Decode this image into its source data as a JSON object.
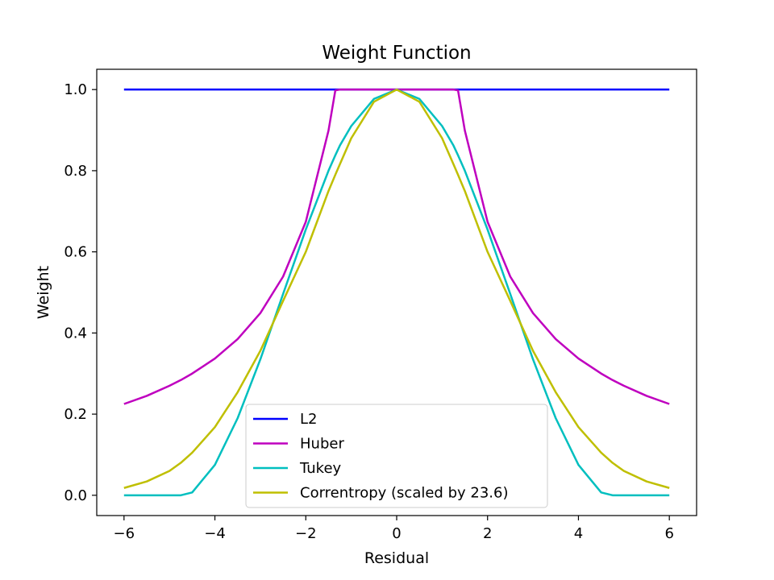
{
  "chart_data": {
    "type": "line",
    "title": "Weight Function",
    "xlabel": "Residual",
    "ylabel": "Weight",
    "xlim": [
      -6.6,
      6.6
    ],
    "ylim": [
      -0.05,
      1.05
    ],
    "xticks": [
      -6,
      -4,
      -2,
      0,
      2,
      4,
      6
    ],
    "xtick_labels": [
      "−6",
      "−4",
      "−2",
      "0",
      "2",
      "4",
      "6"
    ],
    "yticks": [
      0.0,
      0.2,
      0.4,
      0.6,
      0.8,
      1.0
    ],
    "ytick_labels": [
      "0.0",
      "0.2",
      "0.4",
      "0.6",
      "0.8",
      "1.0"
    ],
    "grid": false,
    "legend_position": "lower-center",
    "x": [
      -6.0,
      -5.5,
      -5.0,
      -4.75,
      -4.5,
      -4.0,
      -3.5,
      -3.0,
      -2.5,
      -2.0,
      -1.5,
      -1.35,
      -1.25,
      -1.0,
      -0.5,
      0.0,
      0.5,
      1.0,
      1.25,
      1.35,
      1.5,
      2.0,
      2.5,
      3.0,
      3.5,
      4.0,
      4.5,
      4.75,
      5.0,
      5.5,
      6.0
    ],
    "series": [
      {
        "name": "L2",
        "color": "#0000ff",
        "values": [
          1.0,
          1.0,
          1.0,
          1.0,
          1.0,
          1.0,
          1.0,
          1.0,
          1.0,
          1.0,
          1.0,
          1.0,
          1.0,
          1.0,
          1.0,
          1.0,
          1.0,
          1.0,
          1.0,
          1.0,
          1.0,
          1.0,
          1.0,
          1.0,
          1.0,
          1.0,
          1.0,
          1.0,
          1.0,
          1.0,
          1.0
        ]
      },
      {
        "name": "Huber",
        "color": "#bf00bf",
        "values": [
          0.225,
          0.245,
          0.27,
          0.284,
          0.3,
          0.337,
          0.385,
          0.449,
          0.539,
          0.674,
          0.899,
          0.998,
          1.0,
          1.0,
          1.0,
          1.0,
          1.0,
          1.0,
          1.0,
          0.998,
          0.899,
          0.674,
          0.539,
          0.449,
          0.385,
          0.337,
          0.3,
          0.284,
          0.27,
          0.245,
          0.225
        ]
      },
      {
        "name": "Tukey",
        "color": "#00bfbf",
        "values": [
          0.0,
          0.0,
          0.0,
          0.0,
          0.007,
          0.075,
          0.19,
          0.335,
          0.496,
          0.655,
          0.8,
          0.838,
          0.862,
          0.91,
          0.977,
          1.0,
          0.977,
          0.91,
          0.862,
          0.838,
          0.8,
          0.655,
          0.496,
          0.335,
          0.19,
          0.075,
          0.007,
          0.0,
          0.0,
          0.0,
          0.0
        ]
      },
      {
        "name": "Correntropy (scaled by 23.6)",
        "color": "#bfbf00",
        "values": [
          0.018,
          0.034,
          0.06,
          0.08,
          0.105,
          0.168,
          0.254,
          0.356,
          0.479,
          0.6,
          0.75,
          0.79,
          0.816,
          0.88,
          0.97,
          1.0,
          0.97,
          0.88,
          0.816,
          0.79,
          0.75,
          0.6,
          0.479,
          0.356,
          0.254,
          0.168,
          0.105,
          0.08,
          0.06,
          0.034,
          0.018
        ]
      }
    ]
  }
}
